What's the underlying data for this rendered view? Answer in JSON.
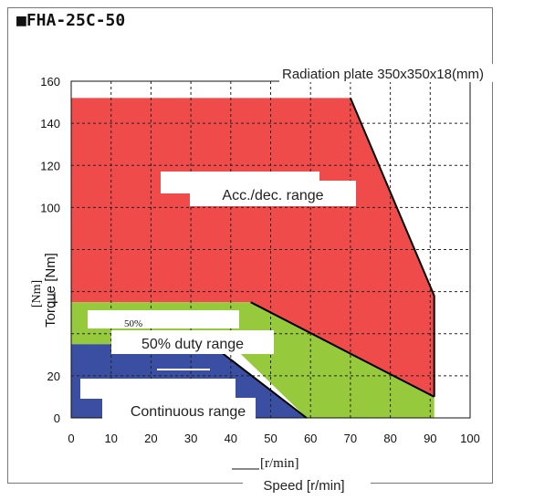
{
  "heading": "■FHA-25C-50",
  "note": "Radiation plate 350x350x18(mm)",
  "chart_data": {
    "type": "area",
    "title": "",
    "xlabel": "Speed [r/min]",
    "xlabel_alt": "[r/min]",
    "ylabel": "Torque [Nm]",
    "ylabel_alt": "[Nm]",
    "xlim": [
      0,
      100
    ],
    "ylim": [
      0,
      160
    ],
    "x_ticks": [
      0,
      10,
      20,
      30,
      40,
      50,
      60,
      70,
      80,
      90,
      100
    ],
    "x_tick_labels": [
      "0",
      "10",
      "20",
      "30",
      "40",
      "50",
      "60",
      "70",
      "80",
      "90",
      "100"
    ],
    "y_ticks": [
      0,
      20,
      100,
      120,
      140,
      160
    ],
    "y_tick_labels": [
      "0",
      "20",
      "100",
      "120",
      "140",
      "160"
    ],
    "grid": true,
    "series": [
      {
        "name": "Acc./dec. range",
        "color": "#f04b4b",
        "points": [
          [
            0,
            0
          ],
          [
            0,
            152
          ],
          [
            70,
            152
          ],
          [
            91,
            58
          ],
          [
            91,
            10
          ],
          [
            59,
            30
          ],
          [
            45,
            55
          ],
          [
            0,
            55
          ]
        ]
      },
      {
        "name": "50% duty range",
        "alt_label": "50%",
        "color": "#97c93c",
        "points": [
          [
            0,
            0
          ],
          [
            0,
            55
          ],
          [
            45,
            55
          ],
          [
            91,
            10
          ],
          [
            91,
            0
          ],
          [
            59,
            0
          ],
          [
            40,
            35
          ],
          [
            0,
            35
          ]
        ]
      },
      {
        "name": "Continuous range",
        "color": "#3a4fa2",
        "points": [
          [
            0,
            0
          ],
          [
            0,
            35
          ],
          [
            35,
            35
          ],
          [
            59,
            0
          ]
        ]
      }
    ],
    "boundary_lines": [
      [
        [
          70,
          152
        ],
        [
          91,
          58
        ],
        [
          91,
          10
        ]
      ],
      [
        [
          45,
          55
        ],
        [
          91,
          10
        ]
      ],
      [
        [
          35,
          35
        ],
        [
          59,
          0
        ]
      ]
    ]
  }
}
